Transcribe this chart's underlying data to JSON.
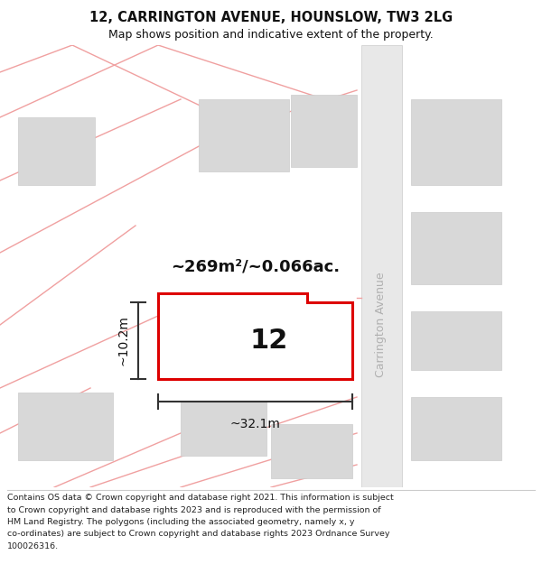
{
  "title": "12, CARRINGTON AVENUE, HOUNSLOW, TW3 2LG",
  "subtitle": "Map shows position and indicative extent of the property.",
  "footer_lines": [
    "Contains OS data © Crown copyright and database right 2021. This information is subject",
    "to Crown copyright and database rights 2023 and is reproduced with the permission of",
    "HM Land Registry. The polygons (including the associated geometry, namely x, y",
    "co-ordinates) are subject to Crown copyright and database rights 2023 Ordnance Survey",
    "100026316."
  ],
  "area_label": "~269m²/~0.066ac.",
  "width_label": "~32.1m",
  "height_label": "~10.2m",
  "number_label": "12",
  "property_stroke": "#dd0000",
  "pink_line_color": "#f0a0a0",
  "road_label_color": "#b0b0b0",
  "building_fill": "#d8d8d8",
  "building_edge": "#cccccc",
  "road_fill": "#e8e8e8",
  "map_bg": "#f4f4f4",
  "street_name": "Carrington Avenue"
}
